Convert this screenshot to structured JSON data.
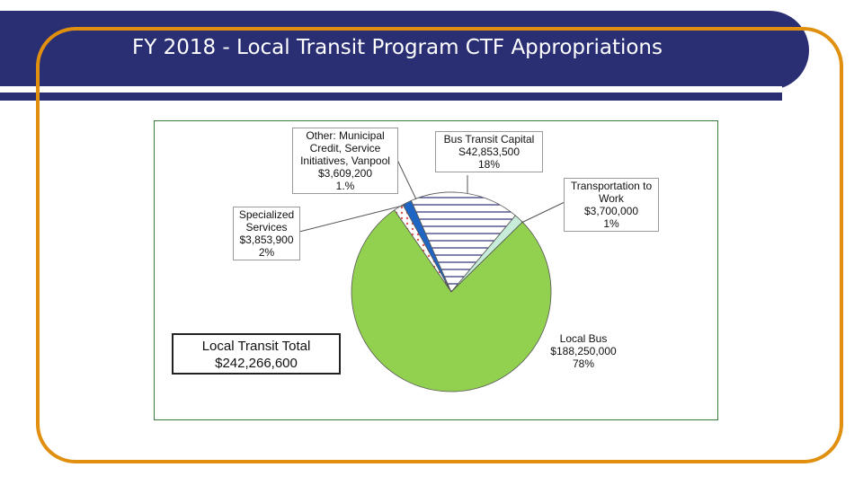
{
  "slide": {
    "title": "FY 2018 - Local Transit Program CTF Appropriations"
  },
  "colors": {
    "banner": "#2a2f74",
    "frame": "#e08f0e",
    "local_bus": "#92d050",
    "bus_transit_capital": "#ffffff",
    "transportation_to_work": "#c7ecd9",
    "specialized": "#e05a5a",
    "other": "#1f66c4"
  },
  "total_box": {
    "line1": "Local Transit Total",
    "line2": "$242,266,600"
  },
  "chart_data": {
    "type": "pie",
    "title": "",
    "total": 242266600,
    "slices": [
      {
        "name": "Local Bus",
        "value": 188250000,
        "amount": "$188,250,000",
        "percent": "78%",
        "fill": "#92d050",
        "pattern": "solid"
      },
      {
        "name": "Specialized Services",
        "value": 3853900,
        "amount": "$3,853,900",
        "percent": "2%",
        "fill": "#ffffff",
        "pattern": "dots"
      },
      {
        "name": "Other: Municipal Credit, Service Initiatives, Vanpool",
        "value": 3609200,
        "amount": "$3,609,200",
        "percent": "1.%",
        "fill": "#1f66c4",
        "pattern": "solid"
      },
      {
        "name": "Bus Transit Capital",
        "value": 42853500,
        "amount": "S42,853,500",
        "percent": "18%",
        "fill": "#ffffff",
        "pattern": "hlines"
      },
      {
        "name": "Transportation to Work",
        "value": 3700000,
        "amount": "$3,700,000",
        "percent": "1%",
        "fill": "#c7ecd9",
        "pattern": "solid"
      }
    ],
    "labels": {
      "other": "Other: Municipal\nCredit, Service\nInitiatives, Vanpool\n$3,609,200\n1.%",
      "bus_capital": "Bus Transit Capital\nS42,853,500\n18%",
      "transport_work": "Transportation to\nWork\n$3,700,000\n1%",
      "specialized": "Specialized\nServices\n$3,853,900\n2%",
      "local_bus": "Local Bus\n$188,250,000\n78%"
    }
  }
}
